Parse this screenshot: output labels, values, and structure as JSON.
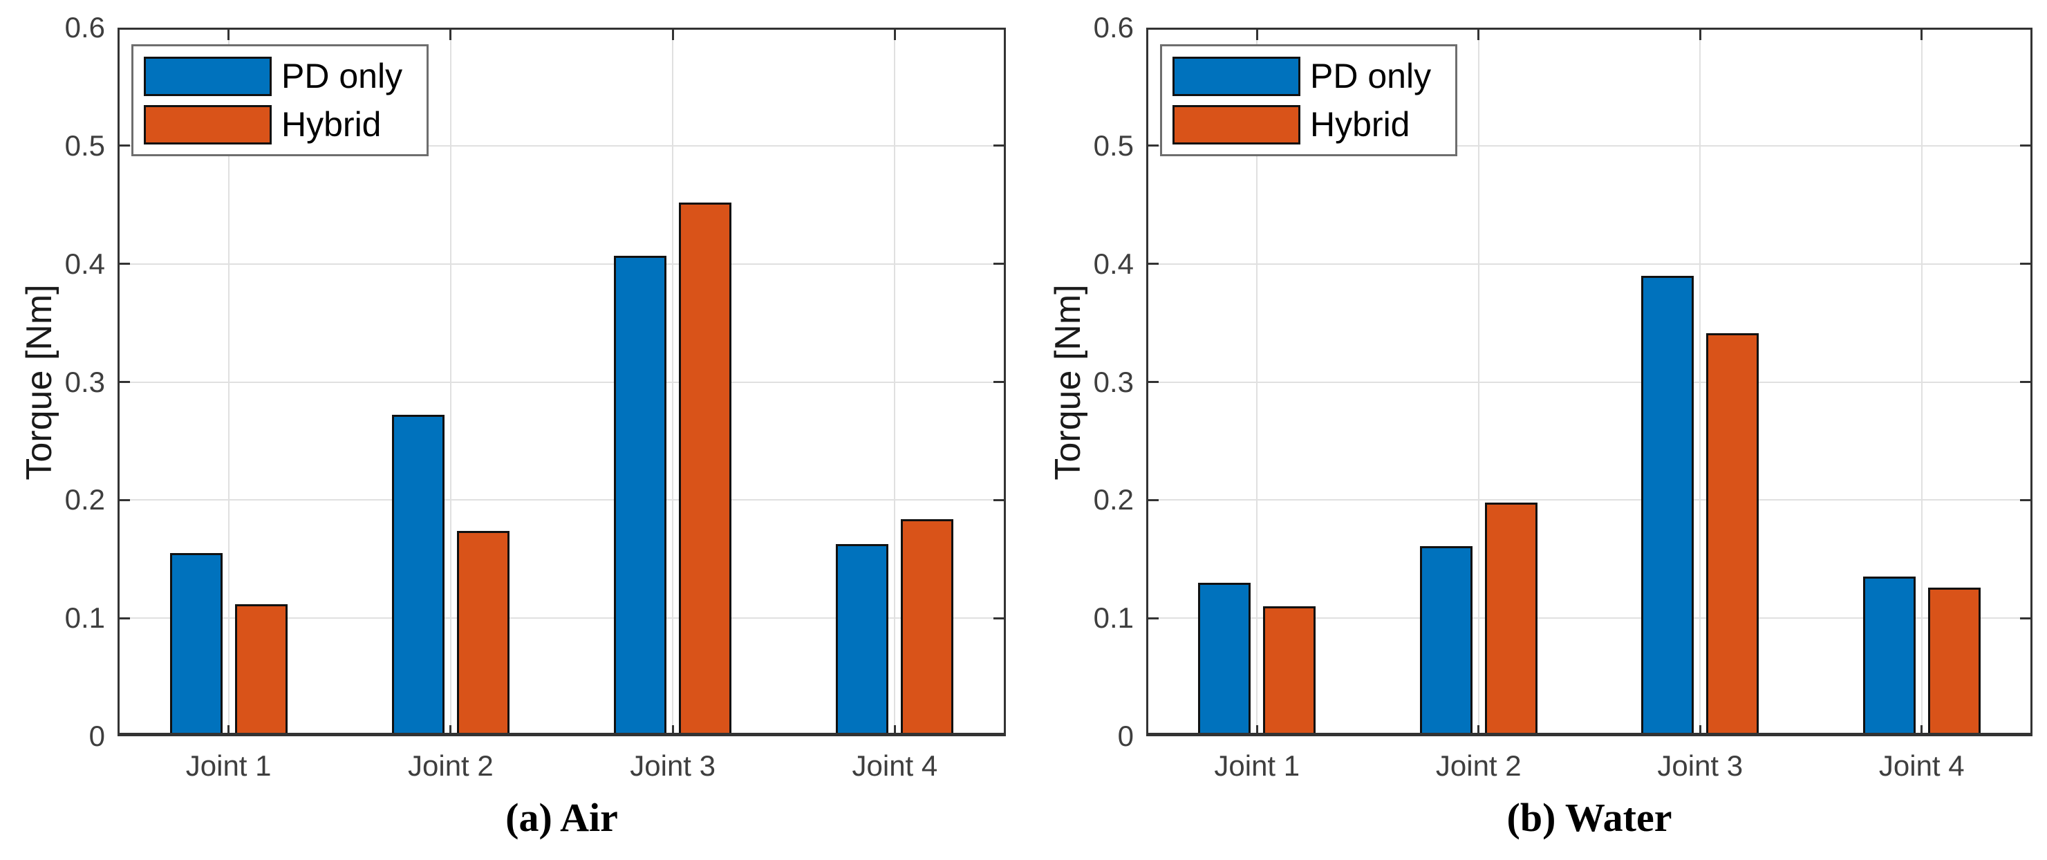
{
  "palette": {
    "bar_blue": "#0072BD",
    "bar_orange": "#D95319",
    "axis": "#333333",
    "grid": "#e0e0e0",
    "tick_text": "#3e3e3e",
    "legend_border": "#6e6e6e"
  },
  "chart_data": [
    {
      "type": "bar",
      "title": "(a) Air",
      "categories": [
        "Joint 1",
        "Joint 2",
        "Joint 3",
        "Joint 4"
      ],
      "series": [
        {
          "name": "PD only",
          "color": "#0072BD",
          "values": [
            0.155,
            0.272,
            0.407,
            0.163
          ]
        },
        {
          "name": "Hybrid",
          "color": "#D95319",
          "values": [
            0.112,
            0.174,
            0.452,
            0.184
          ]
        }
      ],
      "xlabel": "",
      "ylabel": "Torque [Nm]",
      "ylim": [
        0,
        0.6
      ],
      "ytick_step": 0.1,
      "yticks_labels": [
        "0",
        "0.1",
        "0.2",
        "0.3",
        "0.4",
        "0.5",
        "0.6"
      ],
      "grid": true,
      "legend_position": "top-left"
    },
    {
      "type": "bar",
      "title": "(b) Water",
      "categories": [
        "Joint 1",
        "Joint 2",
        "Joint 3",
        "Joint 4"
      ],
      "series": [
        {
          "name": "PD only",
          "color": "#0072BD",
          "values": [
            0.13,
            0.161,
            0.39,
            0.135
          ]
        },
        {
          "name": "Hybrid",
          "color": "#D95319",
          "values": [
            0.11,
            0.198,
            0.341,
            0.126
          ]
        }
      ],
      "xlabel": "",
      "ylabel": "Torque [Nm]",
      "ylim": [
        0,
        0.6
      ],
      "ytick_step": 0.1,
      "yticks_labels": [
        "0",
        "0.1",
        "0.2",
        "0.3",
        "0.4",
        "0.5",
        "0.6"
      ],
      "grid": true,
      "legend_position": "top-left"
    }
  ]
}
